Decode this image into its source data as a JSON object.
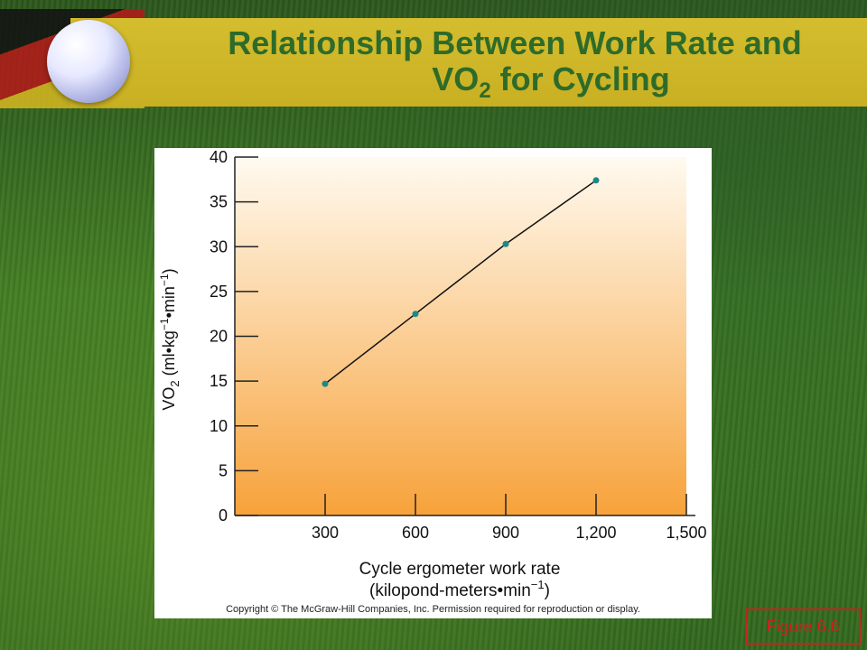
{
  "slide": {
    "title_line1": "Relationship Between Work Rate and",
    "title_line2_main": "VO",
    "title_line2_sub": "2",
    "title_line2_rest": " for Cycling",
    "figure_label": "Figure 6.6",
    "copyright": "Copyright © The McGraw-Hill Companies, Inc. Permission required for reproduction or display."
  },
  "chart_data": {
    "type": "line",
    "x": [
      300,
      600,
      900,
      1200
    ],
    "y": [
      14.7,
      22.5,
      30.3,
      37.4
    ],
    "xlim": [
      0,
      1500
    ],
    "ylim": [
      0,
      40
    ],
    "xticks": [
      300,
      600,
      900,
      1200,
      1500
    ],
    "xtick_labels": [
      "300",
      "600",
      "900",
      "1,200",
      "1,500"
    ],
    "yticks": [
      0,
      5,
      10,
      15,
      20,
      25,
      30,
      35,
      40
    ],
    "ytick_labels": [
      "0",
      "5",
      "10",
      "15",
      "20",
      "25",
      "30",
      "35",
      "40"
    ],
    "xlabel_line1": "Cycle ergometer work rate",
    "xlabel_line2": "(kilopond-meters•min",
    "xlabel_line2_sup": "−1",
    "xlabel_line2_end": ")",
    "ylabel_main": "VO",
    "ylabel_sub": "2",
    "ylabel_rest": " (ml•kg",
    "ylabel_sup1": "−1",
    "ylabel_mid": "•min",
    "ylabel_sup2": "−1",
    "ylabel_end": ")",
    "grid": false,
    "colors": {
      "line": "#111111",
      "marker": "#1a8a86",
      "plot_bg_top": "#fffaf0",
      "plot_bg_bottom": "#f7a23a"
    }
  }
}
